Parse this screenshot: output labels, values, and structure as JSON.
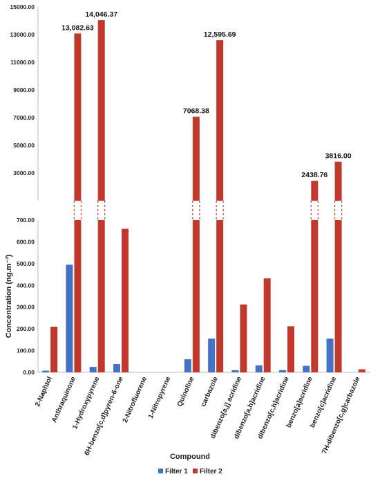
{
  "chart_data": {
    "type": "bar",
    "title": "",
    "xlabel": "Compound",
    "ylabel": "Concentration (ng.m⁻³)",
    "categories": [
      "2-Naphtol",
      "Anthraquinone",
      "1-Hydroxypyrene",
      "6H-benzo[c,d]pyren-6-one",
      "2-Nitrofluorene",
      "1-Nitropyrene",
      "Quinoline",
      "carbazole",
      "dibenzo[a,j] acridine",
      "dibenzo[a,h]acridine",
      "dibenzo[c,h]acridine",
      "benzo[a]acridine",
      "benzo[c]acridine",
      "7H-dibenzo[c,g]carbazole"
    ],
    "series": [
      {
        "name": "Filter 1",
        "color": "#4472c4",
        "values": [
          8,
          495,
          25,
          38,
          0,
          0,
          60,
          155,
          10,
          32,
          10,
          30,
          155,
          0
        ]
      },
      {
        "name": "Filter 2",
        "color": "#c0392b",
        "values": [
          210,
          13082.63,
          14046.37,
          660,
          0,
          0,
          7068.38,
          12595.69,
          312,
          432,
          212,
          2438.76,
          3816.0,
          14
        ]
      }
    ],
    "data_labels": [
      {
        "category_index": 1,
        "series_index": 1,
        "text": "13,082.63"
      },
      {
        "category_index": 2,
        "series_index": 1,
        "text": "14,046.37"
      },
      {
        "category_index": 6,
        "series_index": 1,
        "text": "7068.38"
      },
      {
        "category_index": 7,
        "series_index": 1,
        "text": "12,595.69"
      },
      {
        "category_index": 11,
        "series_index": 1,
        "text": "2438.76"
      },
      {
        "category_index": 12,
        "series_index": 1,
        "text": "3816.00"
      }
    ],
    "axis_break": true,
    "lower_segment": {
      "ylim": [
        0,
        700
      ],
      "ticks": [
        0,
        100,
        200,
        300,
        400,
        500,
        600,
        700
      ],
      "tick_labels": [
        "0.00",
        "100.00",
        "200.00",
        "300.00",
        "400.00",
        "500.00",
        "600.00",
        "700.00"
      ]
    },
    "upper_segment": {
      "ylim": [
        1000,
        15000
      ],
      "ticks": [
        3000,
        5000,
        7000,
        9000,
        11000,
        13000,
        15000
      ],
      "tick_labels": [
        "3000.00",
        "5000.00",
        "7000.00",
        "9000.00",
        "11000.00",
        "13000.00",
        "15000.00"
      ]
    },
    "grid": false,
    "legend": {
      "position": "bottom",
      "entries": [
        "Filter 1",
        "Filter 2"
      ]
    }
  }
}
